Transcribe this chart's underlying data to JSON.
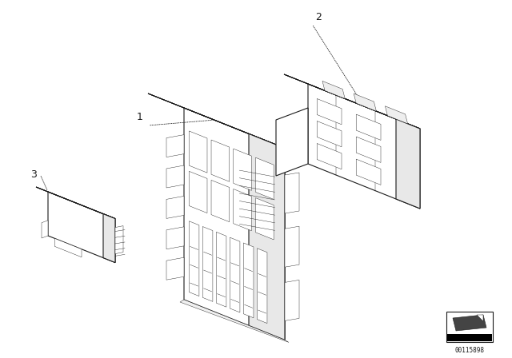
{
  "background_color": "#ffffff",
  "line_color": "#1a1a1a",
  "label_1": "1",
  "label_2": "2",
  "label_3": "3",
  "part_id": "00115898",
  "fig_width": 6.4,
  "fig_height": 4.48,
  "dpi": 100,
  "lw_main": 0.8,
  "lw_detail": 0.5,
  "lw_thin": 0.3
}
